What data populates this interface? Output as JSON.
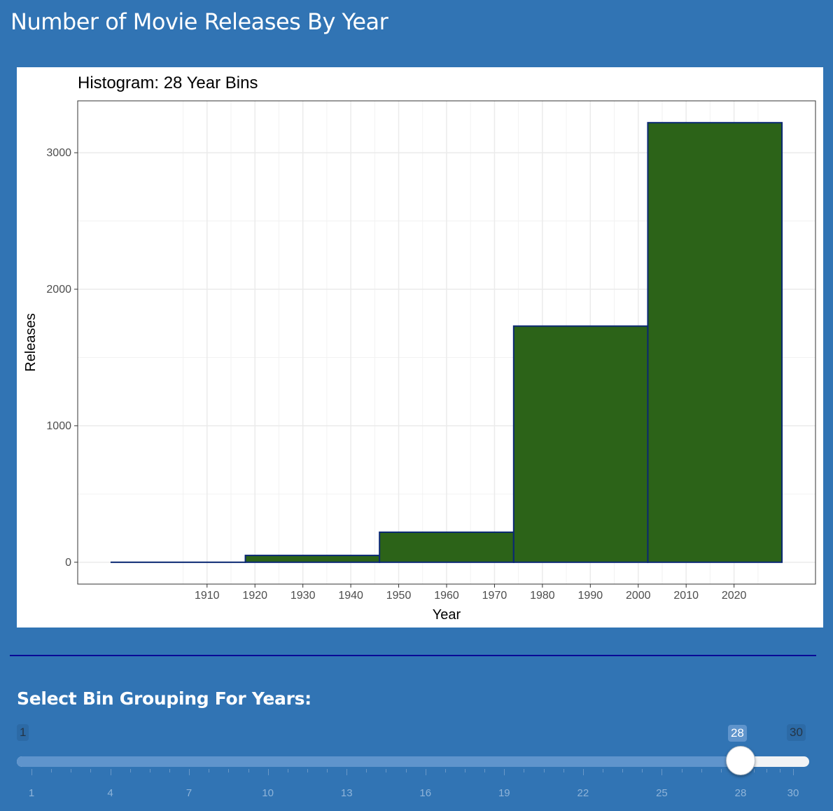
{
  "app": {
    "title": "Number of Movie Releases By Year"
  },
  "chart_data": {
    "type": "bar",
    "title": "Histogram: 28 Year Bins",
    "xlabel": "Year",
    "ylabel": "Releases",
    "bins": [
      {
        "x_start": 1890,
        "x_end": 1918,
        "value": 0
      },
      {
        "x_start": 1918,
        "x_end": 1946,
        "value": 50
      },
      {
        "x_start": 1946,
        "x_end": 1974,
        "value": 220
      },
      {
        "x_start": 1974,
        "x_end": 2002,
        "value": 1730
      },
      {
        "x_start": 2002,
        "x_end": 2030,
        "value": 3220
      }
    ],
    "x_ticks": [
      1910,
      1920,
      1930,
      1940,
      1950,
      1960,
      1970,
      1980,
      1990,
      2000,
      2010,
      2020
    ],
    "y_ticks": [
      0,
      1000,
      2000,
      3000
    ],
    "xlim": [
      1883,
      2037
    ],
    "ylim": [
      -160,
      3380
    ],
    "grid": true,
    "fill_color": "#2c6318",
    "outline_color": "#0a2873"
  },
  "slider": {
    "label": "Select Bin Grouping For Years:",
    "min": 1,
    "max": 30,
    "value": 28,
    "min_label": "1",
    "max_label": "30",
    "value_label": "28",
    "grid_labels": [
      "1",
      "4",
      "7",
      "10",
      "13",
      "16",
      "19",
      "22",
      "25",
      "28",
      "30"
    ]
  }
}
